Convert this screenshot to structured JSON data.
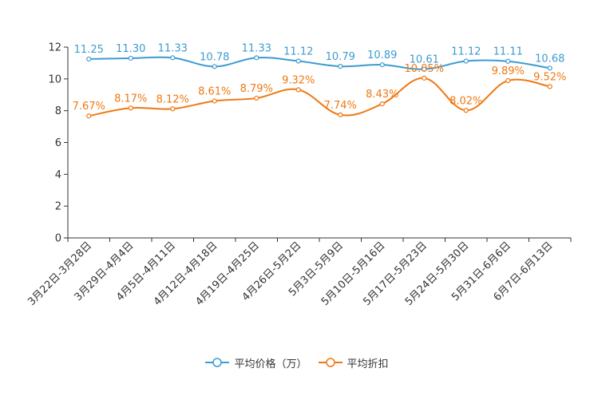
{
  "chart_data": {
    "type": "line",
    "title": "",
    "xlabel": "",
    "ylabel": "",
    "ylim": [
      0,
      12
    ],
    "yticks": [
      0,
      2,
      4,
      6,
      8,
      10,
      12
    ],
    "categories": [
      "3月22日-3月28日",
      "3月29日-4月4日",
      "4月5日-4月11日",
      "4月12日-4月18日",
      "4月19日-4月25日",
      "4月26日-5月2日",
      "5月3日-5月9日",
      "5月10日-5月16日",
      "5月17日-5月23日",
      "5月24日-5月30日",
      "5月31日-6月6日",
      "6月7日-6月13日"
    ],
    "series": [
      {
        "name": "平均价格（万）",
        "color": "#3d9bd1",
        "values": [
          11.25,
          11.3,
          11.33,
          10.78,
          11.33,
          11.12,
          10.79,
          10.89,
          10.61,
          11.12,
          11.11,
          10.68
        ],
        "labels": [
          "11.25",
          "11.30",
          "11.33",
          "10.78",
          "11.33",
          "11.12",
          "10.79",
          "10.89",
          "10.61",
          "11.12",
          "11.11",
          "10.68"
        ]
      },
      {
        "name": "平均折扣",
        "color": "#f07810",
        "values": [
          7.67,
          8.17,
          8.12,
          8.61,
          8.79,
          9.32,
          7.74,
          8.43,
          10.05,
          8.02,
          9.89,
          9.52
        ],
        "labels": [
          "7.67%",
          "8.17%",
          "8.12%",
          "8.61%",
          "8.79%",
          "9.32%",
          "7.74%",
          "8.43%",
          "10.05%",
          "8.02%",
          "9.89%",
          "9.52%"
        ]
      }
    ],
    "legend_position": "bottom-center",
    "grid": false
  }
}
